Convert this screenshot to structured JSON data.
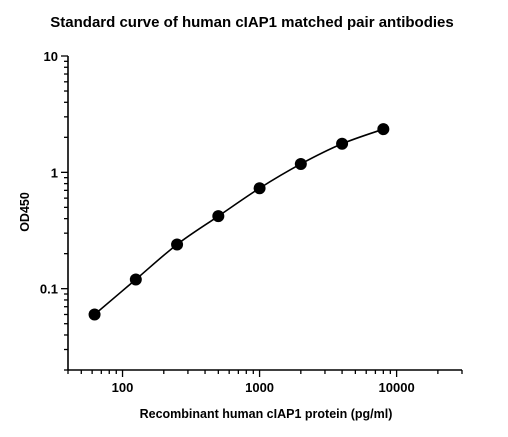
{
  "chart_data": {
    "type": "scatter",
    "title": "Standard curve of human cIAP1 matched pair antibodies",
    "xlabel": "Recombinant human cIAP1 protein (pg/ml)",
    "ylabel": "OD450",
    "xscale": "log",
    "yscale": "log",
    "xlim": [
      40,
      30000
    ],
    "ylim": [
      0.02,
      10
    ],
    "x_ticks": [
      {
        "value": 100,
        "label": "100"
      },
      {
        "value": 1000,
        "label": "1000"
      },
      {
        "value": 10000,
        "label": "10000"
      }
    ],
    "y_ticks": [
      {
        "value": 0.1,
        "label": "0.1"
      },
      {
        "value": 1,
        "label": "1"
      },
      {
        "value": 10,
        "label": "10"
      }
    ],
    "grid": false,
    "legend": "none",
    "colors": {
      "series": "#000000"
    },
    "series": [
      {
        "x": [
          62.5,
          125,
          250,
          500,
          1000,
          2000,
          4000,
          8000
        ],
        "y": [
          0.06,
          0.12,
          0.24,
          0.42,
          0.73,
          1.18,
          1.76,
          2.35
        ]
      }
    ]
  }
}
